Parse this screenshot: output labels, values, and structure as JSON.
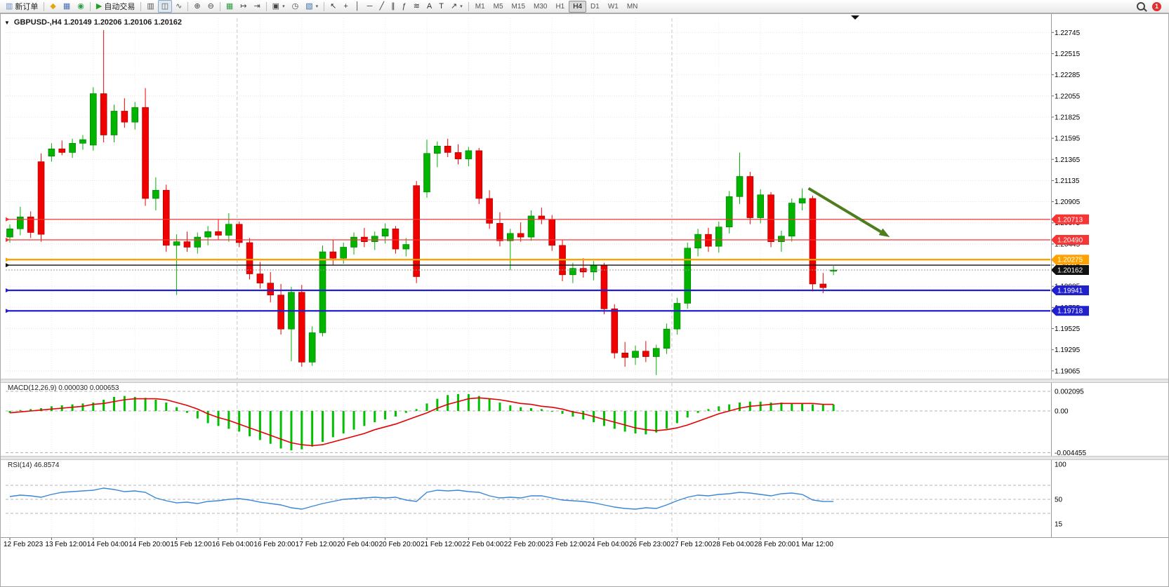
{
  "window": {
    "chart_title": "GBPUSD-,H4  1.20149 1.20206 1.20106 1.20162",
    "collapse_glyph": "▼"
  },
  "toolbar": {
    "groups": [
      {
        "items": [
          {
            "name": "new-order",
            "label": "新订单",
            "glyph": "▥",
            "color": "#6b8fbf"
          }
        ]
      },
      {
        "items": [
          {
            "name": "market-watch",
            "glyph": "◆",
            "color": "#e0a715"
          },
          {
            "name": "data-window",
            "glyph": "▦",
            "color": "#4a6fb5"
          },
          {
            "name": "navigator",
            "glyph": "◉",
            "color": "#2f9e44"
          }
        ]
      },
      {
        "items": [
          {
            "name": "autotrading",
            "label": "自动交易",
            "glyph": "▶",
            "color": "#21a121"
          }
        ]
      },
      {
        "items": [
          {
            "name": "chart-bars",
            "glyph": "▥",
            "color": "#555555"
          },
          {
            "name": "chart-candles",
            "glyph": "◫",
            "color": "#555555",
            "active": true
          },
          {
            "name": "chart-line",
            "glyph": "∿",
            "color": "#555555"
          }
        ]
      },
      {
        "items": [
          {
            "name": "zoom-in",
            "glyph": "⊕",
            "color": "#444444"
          },
          {
            "name": "zoom-out",
            "glyph": "⊖",
            "color": "#444444"
          }
        ]
      },
      {
        "items": [
          {
            "name": "tile-windows",
            "glyph": "▦",
            "color": "#2f9e44"
          },
          {
            "name": "auto-scroll",
            "glyph": "↦",
            "color": "#444444"
          },
          {
            "name": "chart-shift",
            "glyph": "⇥",
            "color": "#444444"
          }
        ]
      },
      {
        "items": [
          {
            "name": "new-chart",
            "glyph": "▣",
            "color": "#444444",
            "dropdown": true
          },
          {
            "name": "period-clock",
            "glyph": "◷",
            "color": "#444444"
          },
          {
            "name": "indicators",
            "glyph": "▧",
            "color": "#3a6ea5",
            "dropdown": true
          }
        ]
      },
      {
        "items": [
          {
            "name": "cursor",
            "glyph": "↖",
            "color": "#333333"
          },
          {
            "name": "crosshair",
            "glyph": "+",
            "color": "#333333"
          },
          {
            "name": "vertical-line",
            "glyph": "│",
            "color": "#333333"
          },
          {
            "name": "horizontal-line",
            "glyph": "─",
            "color": "#333333"
          },
          {
            "name": "trendline",
            "glyph": "╱",
            "color": "#333333"
          },
          {
            "name": "channel",
            "glyph": "∥",
            "color": "#333333"
          },
          {
            "name": "fibonacci",
            "glyph": "ƒ",
            "color": "#333333"
          },
          {
            "name": "waves",
            "glyph": "≋",
            "color": "#333333"
          },
          {
            "name": "text",
            "glyph": "A",
            "color": "#333333"
          },
          {
            "name": "text-label",
            "glyph": "T",
            "color": "#333333"
          },
          {
            "name": "arrows",
            "glyph": "↗",
            "color": "#333333",
            "dropdown": true
          }
        ]
      }
    ],
    "timeframes": [
      "M1",
      "M5",
      "M15",
      "M30",
      "H1",
      "H4",
      "D1",
      "W1",
      "MN"
    ],
    "active_timeframe": "H4",
    "notification_count": "1"
  },
  "chart_data": {
    "type": "candlestick",
    "symbol": "GBPUSD-",
    "timeframe": "H4",
    "ohlc": {
      "open": "1.20149",
      "high": "1.20206",
      "low": "1.20106",
      "close": "1.20162"
    },
    "price_axis": {
      "max": 1.229,
      "min": 1.1898,
      "ticks": [
        "1.22745",
        "1.22515",
        "1.22285",
        "1.22055",
        "1.21825",
        "1.21595",
        "1.21365",
        "1.21135",
        "1.20905",
        "1.20675",
        "1.20445",
        "1.20215",
        "1.19985",
        "1.19755",
        "1.19525",
        "1.19295",
        "1.19065"
      ]
    },
    "time_labels": [
      "12 Feb 2023",
      "13 Feb 12:00",
      "14 Feb 04:00",
      "14 Feb 20:00",
      "15 Feb 12:00",
      "16 Feb 04:00",
      "16 Feb 20:00",
      "17 Feb 12:00",
      "20 Feb 04:00",
      "20 Feb 20:00",
      "21 Feb 12:00",
      "22 Feb 04:00",
      "22 Feb 20:00",
      "23 Feb 12:00",
      "24 Feb 04:00",
      "26 Feb 23:00",
      "27 Feb 12:00",
      "28 Feb 04:00",
      "28 Feb 20:00",
      "1 Mar 12:00"
    ],
    "label_every": 4,
    "candles": [
      [
        1.2052,
        1.2066,
        1.2046,
        1.2061
      ],
      [
        1.2061,
        1.2085,
        1.2054,
        1.2074
      ],
      [
        1.2074,
        1.208,
        1.2051,
        1.2057
      ],
      [
        1.2134,
        1.2143,
        1.2047,
        1.2055
      ],
      [
        1.214,
        1.2154,
        1.2134,
        1.2148
      ],
      [
        1.2148,
        1.2157,
        1.2141,
        1.2144
      ],
      [
        1.2144,
        1.2159,
        1.2138,
        1.2154
      ],
      [
        1.2154,
        1.2163,
        1.2147,
        1.2158
      ],
      [
        1.2152,
        1.2215,
        1.2146,
        1.2208
      ],
      [
        1.2208,
        1.2277,
        1.2155,
        1.2163
      ],
      [
        1.2163,
        1.2196,
        1.2155,
        1.2189
      ],
      [
        1.2189,
        1.2203,
        1.2171,
        1.2177
      ],
      [
        1.2177,
        1.2199,
        1.2169,
        1.2193
      ],
      [
        1.2193,
        1.2214,
        1.2086,
        1.2094
      ],
      [
        1.2094,
        1.2117,
        1.2081,
        1.2103
      ],
      [
        1.2103,
        1.2109,
        1.2036,
        1.2043
      ],
      [
        1.2043,
        1.2055,
        1.1989,
        1.2047
      ],
      [
        1.2047,
        1.2058,
        1.2036,
        1.2041
      ],
      [
        1.2041,
        1.2057,
        1.2034,
        1.2052
      ],
      [
        1.2052,
        1.2064,
        1.2043,
        1.2058
      ],
      [
        1.2058,
        1.2071,
        1.2049,
        1.2054
      ],
      [
        1.2054,
        1.2078,
        1.2047,
        1.2066
      ],
      [
        1.2066,
        1.2069,
        1.2041,
        1.2046
      ],
      [
        1.2046,
        1.2051,
        1.2006,
        1.2012
      ],
      [
        1.2012,
        1.2025,
        1.1996,
        1.2002
      ],
      [
        1.2002,
        1.2014,
        1.1981,
        1.1989
      ],
      [
        1.1989,
        1.2001,
        1.1946,
        1.1952
      ],
      [
        1.1952,
        1.1998,
        1.1917,
        1.1992
      ],
      [
        1.1992,
        1.2,
        1.1911,
        1.1916
      ],
      [
        1.1916,
        1.1955,
        1.1912,
        1.1948
      ],
      [
        1.1948,
        1.2043,
        1.1944,
        1.2036
      ],
      [
        1.2036,
        1.2049,
        1.2022,
        1.2029
      ],
      [
        1.2029,
        1.2046,
        1.2023,
        1.2041
      ],
      [
        1.2041,
        1.2057,
        1.2033,
        1.2052
      ],
      [
        1.2052,
        1.2062,
        1.2041,
        1.2047
      ],
      [
        1.2047,
        1.2058,
        1.2038,
        1.2053
      ],
      [
        1.2053,
        1.2067,
        1.2045,
        1.2061
      ],
      [
        1.2061,
        1.2064,
        1.2034,
        1.2039
      ],
      [
        1.2039,
        1.2051,
        1.2031,
        1.2044
      ],
      [
        1.2108,
        1.2113,
        1.2002,
        1.2009
      ],
      [
        1.2101,
        1.2158,
        1.2095,
        1.2143
      ],
      [
        1.2143,
        1.2156,
        1.2128,
        1.2151
      ],
      [
        1.2151,
        1.2159,
        1.2139,
        1.2144
      ],
      [
        1.2144,
        1.2153,
        1.2131,
        1.2137
      ],
      [
        1.2137,
        1.215,
        1.2129,
        1.2146
      ],
      [
        1.2146,
        1.2149,
        1.2088,
        1.2094
      ],
      [
        1.2094,
        1.2103,
        1.2061,
        1.2067
      ],
      [
        1.2067,
        1.2079,
        1.2042,
        1.2048
      ],
      [
        1.2048,
        1.2061,
        1.2016,
        1.2056
      ],
      [
        1.2056,
        1.2068,
        1.2047,
        1.2052
      ],
      [
        1.2052,
        1.2081,
        1.2048,
        1.2075
      ],
      [
        1.2075,
        1.2084,
        1.2066,
        1.2071
      ],
      [
        1.2071,
        1.2076,
        1.2037,
        1.2043
      ],
      [
        1.2043,
        1.2049,
        1.2004,
        1.2011
      ],
      [
        1.2011,
        1.2024,
        1.2002,
        1.2018
      ],
      [
        1.2018,
        1.2029,
        1.2008,
        1.2014
      ],
      [
        1.2014,
        1.2026,
        1.2005,
        1.2021
      ],
      [
        1.2021,
        1.2024,
        1.1968,
        1.1974
      ],
      [
        1.1974,
        1.1979,
        1.192,
        1.1926
      ],
      [
        1.1926,
        1.1938,
        1.1911,
        1.1921
      ],
      [
        1.1921,
        1.1934,
        1.1913,
        1.1928
      ],
      [
        1.1928,
        1.1939,
        1.1916,
        1.1922
      ],
      [
        1.1922,
        1.1935,
        1.1902,
        1.1931
      ],
      [
        1.1931,
        1.1958,
        1.1925,
        1.1952
      ],
      [
        1.1952,
        1.1986,
        1.1946,
        1.198
      ],
      [
        1.198,
        1.2046,
        1.1974,
        1.204
      ],
      [
        1.204,
        1.2061,
        1.2031,
        1.2055
      ],
      [
        1.2055,
        1.2062,
        1.2036,
        1.2042
      ],
      [
        1.2042,
        1.2069,
        1.2035,
        1.2063
      ],
      [
        1.2063,
        1.2102,
        1.2056,
        1.2096
      ],
      [
        1.2096,
        1.2144,
        1.2088,
        1.2118
      ],
      [
        1.2118,
        1.2123,
        1.2066,
        1.2073
      ],
      [
        1.2073,
        1.2104,
        1.2067,
        1.2098
      ],
      [
        1.2098,
        1.2101,
        1.2041,
        1.2047
      ],
      [
        1.2047,
        1.2059,
        1.2036,
        1.2053
      ],
      [
        1.2053,
        1.2094,
        1.2047,
        1.2089
      ],
      [
        1.2089,
        1.2105,
        1.2081,
        1.2094
      ],
      [
        1.2094,
        1.2097,
        1.1993,
        1.2001
      ],
      [
        1.2001,
        1.2013,
        1.1991,
        1.1997
      ],
      [
        1.20149,
        1.20206,
        1.20106,
        1.20162
      ]
    ],
    "hlines": [
      {
        "price": 1.20713,
        "label": "1.20713",
        "color": "#f63535",
        "tag_bg": "#f63535",
        "width": 1.2
      },
      {
        "price": 1.2049,
        "label": "1.20490",
        "color": "#f63535",
        "tag_bg": "#f63535",
        "width": 1.2
      },
      {
        "price": 1.20275,
        "label": "1.20275",
        "color": "#ffa200",
        "tag_bg": "#ffa200",
        "width": 2.4
      },
      {
        "price": 1.20215,
        "label": "",
        "color": "#111111",
        "width": 1.3
      },
      {
        "price": 1.19941,
        "label": "1.19941",
        "color": "#2020cc",
        "tag_bg": "#2020cc",
        "width": 2.2
      },
      {
        "price": 1.19718,
        "label": "1.19718",
        "color": "#2020cc",
        "tag_bg": "#2020cc",
        "width": 2.2
      }
    ],
    "current_price": {
      "label": "1.20162",
      "price": 1.20162,
      "tag_bg": "#111111"
    },
    "period_separators": [
      21.8,
      63.5
    ],
    "trend_arrow": {
      "from_candle": 76.6,
      "from_price": 1.2105,
      "to_candle": 84.4,
      "to_price": 1.2052,
      "color": "#4e7d1e"
    },
    "macd": {
      "title": "MACD(12,26,9) 0.000030 0.000653",
      "axis_ticks": [
        {
          "label": "0.002095",
          "value": 0.002095
        },
        {
          "label": "0.00",
          "value": 0
        },
        {
          "label": "-0.004455",
          "value": -0.004455
        }
      ],
      "histogram_color": "#00c000",
      "signal_color": "#e60000",
      "histogram": [
        -0.0002,
        0.0001,
        0.0002,
        0.0003,
        0.0005,
        0.0006,
        0.0007,
        0.0008,
        0.0009,
        0.0012,
        0.0015,
        0.0016,
        0.0015,
        0.0014,
        0.0012,
        0.0009,
        0.0004,
        -0.0002,
        -0.0008,
        -0.0013,
        -0.0016,
        -0.0019,
        -0.0022,
        -0.0027,
        -0.0031,
        -0.0035,
        -0.004,
        -0.0042,
        -0.0041,
        -0.0038,
        -0.0033,
        -0.0028,
        -0.0024,
        -0.002,
        -0.0016,
        -0.0012,
        -0.0009,
        -0.0006,
        -0.0002,
        0.0002,
        0.0008,
        0.0013,
        0.0017,
        0.0018,
        0.0018,
        0.0016,
        0.0013,
        0.0009,
        0.0006,
        0.0004,
        0.0003,
        0.0002,
        0.0,
        -0.0003,
        -0.0006,
        -0.0009,
        -0.0012,
        -0.0016,
        -0.0019,
        -0.0022,
        -0.0024,
        -0.0025,
        -0.0023,
        -0.0019,
        -0.0013,
        -0.0007,
        -0.0002,
        0.0002,
        0.0005,
        0.0007,
        0.0009,
        0.001,
        0.001,
        0.0009,
        0.0009,
        0.0008,
        0.0008,
        0.0007,
        0.0007,
        0.0007
      ],
      "signal": [
        -0.0002,
        -0.0001,
        0.0,
        0.0001,
        0.0002,
        0.0003,
        0.0004,
        0.0005,
        0.0007,
        0.0008,
        0.001,
        0.0012,
        0.0013,
        0.0013,
        0.0013,
        0.0012,
        0.0009,
        0.0006,
        0.0002,
        -0.0003,
        -0.0007,
        -0.001,
        -0.0014,
        -0.0018,
        -0.0022,
        -0.0026,
        -0.003,
        -0.0034,
        -0.0036,
        -0.0037,
        -0.0036,
        -0.0033,
        -0.003,
        -0.0027,
        -0.0024,
        -0.002,
        -0.0017,
        -0.0014,
        -0.001,
        -0.0006,
        -0.0002,
        0.0003,
        0.0007,
        0.001,
        0.0013,
        0.0014,
        0.0013,
        0.0012,
        0.001,
        0.0008,
        0.0007,
        0.0005,
        0.0004,
        0.0002,
        -0.0001,
        -0.0003,
        -0.0006,
        -0.0009,
        -0.0012,
        -0.0015,
        -0.0018,
        -0.002,
        -0.0021,
        -0.002,
        -0.0018,
        -0.0015,
        -0.0011,
        -0.0007,
        -0.0003,
        0.0,
        0.0003,
        0.0005,
        0.0006,
        0.0007,
        0.0008,
        0.0008,
        0.0008,
        0.0008,
        0.0007,
        0.0007
      ]
    },
    "rsi": {
      "title": "RSI(14) 46.8574",
      "line_color": "#3a87d6",
      "axis_labels": [
        {
          "label": "100",
          "value": 100
        },
        {
          "label": "50",
          "value": 50
        },
        {
          "label": "15",
          "value": 15
        }
      ],
      "levels": [
        70,
        50,
        30
      ],
      "values": [
        54,
        56,
        55,
        53,
        57,
        60,
        61,
        62,
        63,
        66,
        64,
        61,
        62,
        60,
        52,
        48,
        45,
        46,
        44,
        47,
        48,
        50,
        51,
        49,
        46,
        44,
        42,
        38,
        36,
        40,
        44,
        47,
        50,
        51,
        52,
        53,
        52,
        53,
        49,
        47,
        60,
        63,
        62,
        63,
        61,
        60,
        55,
        52,
        53,
        52,
        55,
        55,
        52,
        49,
        48,
        47,
        45,
        42,
        39,
        37,
        36,
        38,
        37,
        42,
        48,
        53,
        56,
        55,
        57,
        58,
        60,
        59,
        57,
        55,
        58,
        59,
        57,
        49,
        47,
        46.9
      ]
    }
  }
}
